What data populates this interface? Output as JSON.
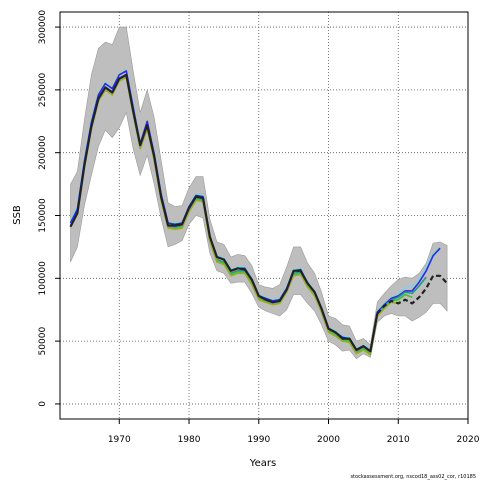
{
  "chart_data": {
    "type": "line",
    "xlabel": "Years",
    "ylabel": "SSB",
    "xlim": [
      1961.5,
      2020
    ],
    "ylim": [
      -12000,
      312000
    ],
    "x_ticks": [
      1970,
      1980,
      1990,
      2000,
      2010,
      2020
    ],
    "y_ticks": [
      0,
      50000,
      100000,
      150000,
      200000,
      250000,
      300000
    ],
    "grid": true,
    "legend": "none",
    "footer": "stockassessment.org, nscod18_ass02_cor, r10185",
    "colors": {
      "band": "#bebebe",
      "main": "#222222",
      "lightblue": "#87ceeb",
      "blue": "#2a2ae0",
      "teal": "#1e9e78",
      "green": "#52b830",
      "olive": "#9aa83c"
    },
    "band": {
      "years": [
        1963,
        1964,
        1965,
        1966,
        1967,
        1968,
        1969,
        1970,
        1971,
        1972,
        1973,
        1974,
        1975,
        1976,
        1977,
        1978,
        1979,
        1980,
        1981,
        1982,
        1983,
        1984,
        1985,
        1986,
        1987,
        1988,
        1989,
        1990,
        1991,
        1992,
        1993,
        1994,
        1995,
        1996,
        1997,
        1998,
        1999,
        2000,
        2001,
        2002,
        2003,
        2004,
        2005,
        2006,
        2007,
        2008,
        2009,
        2010,
        2011,
        2012,
        2013,
        2014,
        2015,
        2016,
        2017
      ],
      "lower": [
        113000,
        125000,
        158000,
        182000,
        205000,
        218000,
        212000,
        220000,
        232000,
        203000,
        182000,
        198000,
        175000,
        148000,
        125000,
        127000,
        130000,
        143000,
        150000,
        148000,
        120000,
        106000,
        104000,
        96000,
        97000,
        97000,
        88000,
        77000,
        74000,
        72000,
        70000,
        75000,
        87000,
        87000,
        80000,
        74000,
        63000,
        50000,
        47000,
        42000,
        43000,
        36000,
        40000,
        37000,
        65000,
        70000,
        72000,
        70000,
        70000,
        66000,
        69000,
        73000,
        80000,
        80000,
        74000
      ],
      "upper": [
        175000,
        185000,
        226000,
        262000,
        283000,
        288000,
        286000,
        300000,
        300000,
        265000,
        232000,
        250000,
        228000,
        194000,
        160000,
        157000,
        158000,
        172000,
        181000,
        181000,
        147000,
        129000,
        127000,
        117000,
        119000,
        118000,
        110000,
        95000,
        93000,
        92000,
        95000,
        109000,
        125000,
        125000,
        112000,
        104000,
        89000,
        70000,
        68000,
        63000,
        62000,
        50000,
        52000,
        47000,
        81000,
        88000,
        94000,
        99000,
        101000,
        100000,
        104000,
        112000,
        128000,
        129000,
        126000
      ]
    },
    "x": [
      1963,
      1964,
      1965,
      1966,
      1967,
      1968,
      1969,
      1970,
      1971,
      1972,
      1973,
      1974,
      1975,
      1976,
      1977,
      1978,
      1979,
      1980,
      1981,
      1982,
      1983,
      1984,
      1985,
      1986,
      1987,
      1988,
      1989,
      1990,
      1991,
      1992,
      1993,
      1994,
      1995,
      1996,
      1997,
      1998,
      1999,
      2000,
      2001,
      2002,
      2003,
      2004,
      2005,
      2006,
      2007,
      2008,
      2009,
      2010,
      2011,
      2012,
      2013,
      2014,
      2015,
      2016,
      2017
    ],
    "series": [
      {
        "color": "lightblue",
        "values": [
          147000,
          157000,
          195000,
          226000,
          247000,
          256000,
          252000,
          263000,
          266000,
          237000,
          208000,
          224000,
          200000,
          168000,
          144000,
          144000,
          144000,
          158000,
          167000,
          166000,
          134000,
          118000,
          116000,
          107000,
          109000,
          109000,
          100000,
          87000,
          85000,
          83000,
          84000,
          93000,
          107000,
          108000,
          97000,
          90000,
          77000,
          61000,
          58000,
          54000,
          53000,
          44000,
          47000,
          43000,
          74000,
          80000,
          85000,
          88000,
          93000,
          93000,
          100000,
          110000,
          120000,
          125000,
          null
        ]
      },
      {
        "color": "blue",
        "values": [
          144000,
          155000,
          193000,
          224000,
          246000,
          255000,
          251000,
          262000,
          265000,
          236000,
          207000,
          225000,
          199000,
          167000,
          144000,
          143000,
          144000,
          157000,
          166000,
          165000,
          133000,
          117000,
          115000,
          106000,
          108000,
          108000,
          99000,
          86000,
          84000,
          82000,
          83000,
          92000,
          106000,
          107000,
          96000,
          89000,
          76000,
          60000,
          57000,
          53000,
          52000,
          43000,
          46000,
          42000,
          73000,
          79000,
          84000,
          86000,
          90000,
          90000,
          97000,
          106000,
          118000,
          124000,
          null
        ]
      },
      {
        "color": "teal",
        "values": [
          142000,
          152000,
          190000,
          221000,
          243000,
          252000,
          248000,
          259000,
          262000,
          233000,
          205000,
          221000,
          196000,
          164000,
          142000,
          141000,
          142000,
          155000,
          164000,
          163000,
          131000,
          115000,
          113000,
          104000,
          106000,
          106000,
          97000,
          85000,
          83000,
          81000,
          82000,
          91000,
          104000,
          105000,
          95000,
          88000,
          75000,
          59000,
          56000,
          52000,
          51000,
          42000,
          45000,
          41000,
          72000,
          78000,
          83000,
          85000,
          89000,
          88000,
          94000,
          101000,
          null,
          null,
          null
        ]
      },
      {
        "color": "green",
        "values": [
          142000,
          152000,
          189000,
          220000,
          242000,
          251000,
          247000,
          258000,
          261000,
          232000,
          204000,
          220000,
          195000,
          163000,
          141000,
          140000,
          141000,
          154000,
          163000,
          162000,
          130000,
          114000,
          112000,
          103000,
          105000,
          105000,
          96000,
          84000,
          82000,
          80000,
          81000,
          90000,
          103000,
          104000,
          94000,
          87000,
          74000,
          58000,
          55000,
          51000,
          50000,
          41000,
          44000,
          40000,
          71000,
          77000,
          82000,
          83000,
          87000,
          85000,
          null,
          null,
          null,
          null,
          null
        ]
      },
      {
        "color": "olive",
        "values": [
          141000,
          151000,
          188000,
          219000,
          241000,
          250000,
          246000,
          257000,
          260000,
          231000,
          203000,
          219000,
          194000,
          162000,
          140000,
          139000,
          140000,
          153000,
          162000,
          161000,
          129000,
          113000,
          111000,
          102000,
          104000,
          104000,
          95000,
          83000,
          81000,
          79000,
          80000,
          89000,
          102000,
          103000,
          93000,
          86000,
          73000,
          57000,
          54000,
          50000,
          49000,
          40000,
          43000,
          39000,
          70000,
          76000,
          81000,
          80000,
          null,
          null,
          null,
          null,
          null,
          null,
          null
        ]
      },
      {
        "color": "main",
        "dashed_from": 2007,
        "values": [
          141000,
          152000,
          190000,
          221000,
          243000,
          252000,
          248000,
          259000,
          262000,
          233000,
          206000,
          222000,
          197000,
          165000,
          142000,
          142000,
          143000,
          156000,
          165000,
          164000,
          133000,
          117000,
          115000,
          106000,
          108000,
          107000,
          99000,
          86000,
          83000,
          81000,
          82000,
          91000,
          106000,
          106000,
          96000,
          89000,
          76000,
          60000,
          57000,
          52000,
          52000,
          43000,
          46000,
          42000,
          72000,
          78000,
          82000,
          80000,
          83000,
          80000,
          85000,
          92000,
          102000,
          102000,
          96000
        ]
      }
    ]
  }
}
